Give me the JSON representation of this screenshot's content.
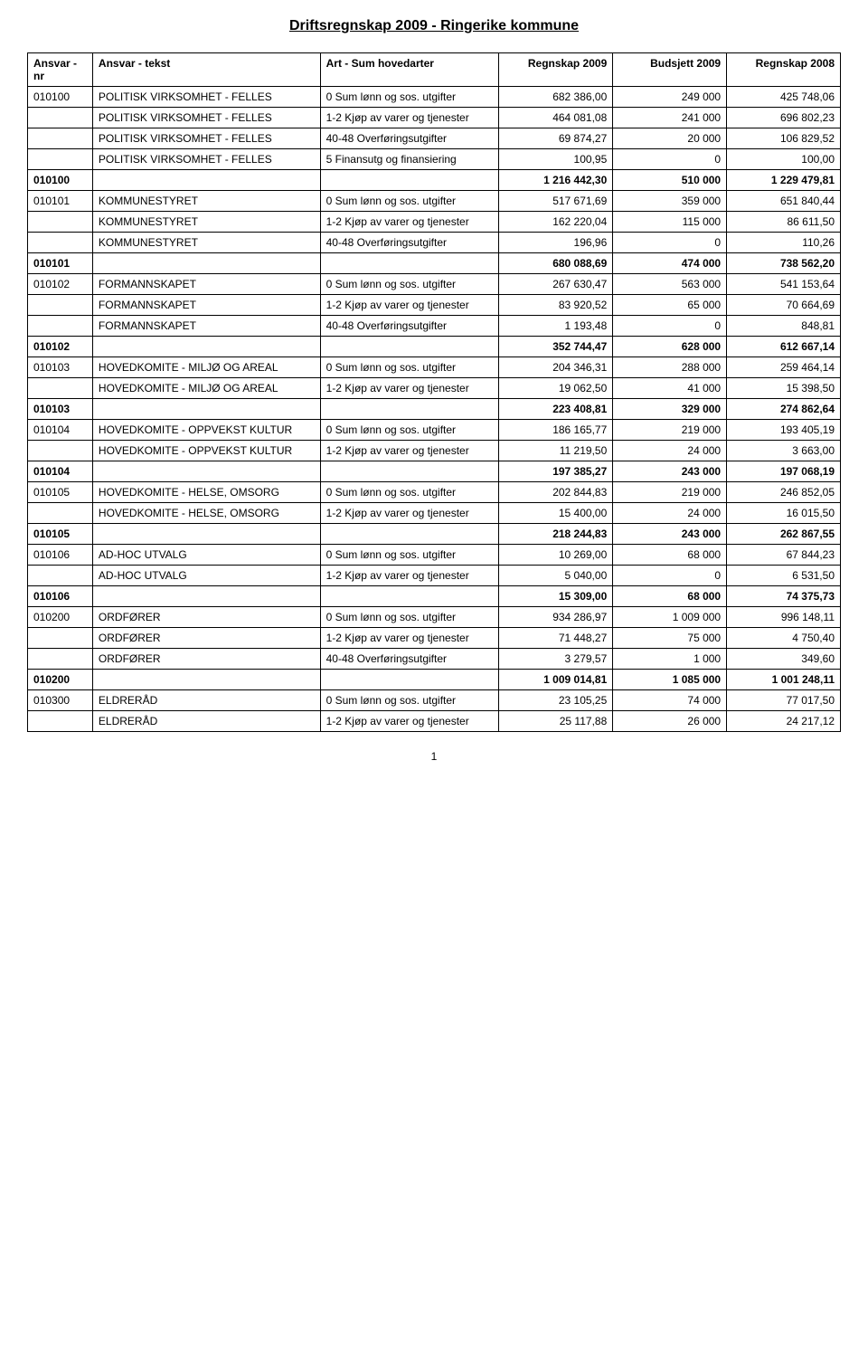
{
  "title": "Driftsregnskap 2009 - Ringerike kommune",
  "columns": {
    "c1": "Ansvar - nr",
    "c2": "Ansvar - tekst",
    "c3": "Art - Sum hovedarter",
    "c4": "Regnskap 2009",
    "c5": "Budsjett 2009",
    "c6": "Regnskap 2008"
  },
  "groups": [
    {
      "code": "010100",
      "rows": [
        {
          "ansvar": "POLITISK VIRKSOMHET - FELLES",
          "art": "0 Sum lønn og sos. utgifter",
          "r2009": "682 386,00",
          "b2009": "249 000",
          "r2008": "425 748,06"
        },
        {
          "ansvar": "POLITISK VIRKSOMHET - FELLES",
          "art": "1-2 Kjøp av varer og tjenester",
          "r2009": "464 081,08",
          "b2009": "241 000",
          "r2008": "696 802,23"
        },
        {
          "ansvar": "POLITISK VIRKSOMHET - FELLES",
          "art": "40-48 Overføringsutgifter",
          "r2009": "69 874,27",
          "b2009": "20 000",
          "r2008": "106 829,52"
        },
        {
          "ansvar": "POLITISK VIRKSOMHET - FELLES",
          "art": "5 Finansutg og finansiering",
          "r2009": "100,95",
          "b2009": "0",
          "r2008": "100,00"
        }
      ],
      "subtotal": {
        "r2009": "1 216 442,30",
        "b2009": "510 000",
        "r2008": "1 229 479,81"
      }
    },
    {
      "code": "010101",
      "rows": [
        {
          "ansvar": "KOMMUNESTYRET",
          "art": "0 Sum lønn og sos. utgifter",
          "r2009": "517 671,69",
          "b2009": "359 000",
          "r2008": "651 840,44"
        },
        {
          "ansvar": "KOMMUNESTYRET",
          "art": "1-2 Kjøp av varer og tjenester",
          "r2009": "162 220,04",
          "b2009": "115 000",
          "r2008": "86 611,50"
        },
        {
          "ansvar": "KOMMUNESTYRET",
          "art": "40-48 Overføringsutgifter",
          "r2009": "196,96",
          "b2009": "0",
          "r2008": "110,26"
        }
      ],
      "subtotal": {
        "r2009": "680 088,69",
        "b2009": "474 000",
        "r2008": "738 562,20"
      }
    },
    {
      "code": "010102",
      "rows": [
        {
          "ansvar": "FORMANNSKAPET",
          "art": "0 Sum lønn og sos. utgifter",
          "r2009": "267 630,47",
          "b2009": "563 000",
          "r2008": "541 153,64"
        },
        {
          "ansvar": "FORMANNSKAPET",
          "art": "1-2 Kjøp av varer og tjenester",
          "r2009": "83 920,52",
          "b2009": "65 000",
          "r2008": "70 664,69"
        },
        {
          "ansvar": "FORMANNSKAPET",
          "art": "40-48 Overføringsutgifter",
          "r2009": "1 193,48",
          "b2009": "0",
          "r2008": "848,81"
        }
      ],
      "subtotal": {
        "r2009": "352 744,47",
        "b2009": "628 000",
        "r2008": "612 667,14"
      }
    },
    {
      "code": "010103",
      "rows": [
        {
          "ansvar": "HOVEDKOMITE - MILJØ OG AREAL",
          "art": "0 Sum lønn og sos. utgifter",
          "r2009": "204 346,31",
          "b2009": "288 000",
          "r2008": "259 464,14"
        },
        {
          "ansvar": "HOVEDKOMITE - MILJØ OG AREAL",
          "art": "1-2 Kjøp av varer og tjenester",
          "r2009": "19 062,50",
          "b2009": "41 000",
          "r2008": "15 398,50"
        }
      ],
      "subtotal": {
        "r2009": "223 408,81",
        "b2009": "329 000",
        "r2008": "274 862,64"
      }
    },
    {
      "code": "010104",
      "rows": [
        {
          "ansvar": "HOVEDKOMITE - OPPVEKST KULTUR",
          "art": "0 Sum lønn og sos. utgifter",
          "r2009": "186 165,77",
          "b2009": "219 000",
          "r2008": "193 405,19"
        },
        {
          "ansvar": "HOVEDKOMITE - OPPVEKST KULTUR",
          "art": "1-2 Kjøp av varer og tjenester",
          "r2009": "11 219,50",
          "b2009": "24 000",
          "r2008": "3 663,00"
        }
      ],
      "subtotal": {
        "r2009": "197 385,27",
        "b2009": "243 000",
        "r2008": "197 068,19"
      }
    },
    {
      "code": "010105",
      "rows": [
        {
          "ansvar": "HOVEDKOMITE - HELSE, OMSORG",
          "art": "0 Sum lønn og sos. utgifter",
          "r2009": "202 844,83",
          "b2009": "219 000",
          "r2008": "246 852,05"
        },
        {
          "ansvar": "HOVEDKOMITE - HELSE, OMSORG",
          "art": "1-2 Kjøp av varer og tjenester",
          "r2009": "15 400,00",
          "b2009": "24 000",
          "r2008": "16 015,50"
        }
      ],
      "subtotal": {
        "r2009": "218 244,83",
        "b2009": "243 000",
        "r2008": "262 867,55"
      }
    },
    {
      "code": "010106",
      "rows": [
        {
          "ansvar": "AD-HOC UTVALG",
          "art": "0 Sum lønn og sos. utgifter",
          "r2009": "10 269,00",
          "b2009": "68 000",
          "r2008": "67 844,23"
        },
        {
          "ansvar": "AD-HOC UTVALG",
          "art": "1-2 Kjøp av varer og tjenester",
          "r2009": "5 040,00",
          "b2009": "0",
          "r2008": "6 531,50"
        }
      ],
      "subtotal": {
        "r2009": "15 309,00",
        "b2009": "68 000",
        "r2008": "74 375,73"
      }
    },
    {
      "code": "010200",
      "rows": [
        {
          "ansvar": "ORDFØRER",
          "art": "0 Sum lønn og sos. utgifter",
          "r2009": "934 286,97",
          "b2009": "1 009 000",
          "r2008": "996 148,11"
        },
        {
          "ansvar": "ORDFØRER",
          "art": "1-2 Kjøp av varer og tjenester",
          "r2009": "71 448,27",
          "b2009": "75 000",
          "r2008": "4 750,40"
        },
        {
          "ansvar": "ORDFØRER",
          "art": "40-48 Overføringsutgifter",
          "r2009": "3 279,57",
          "b2009": "1 000",
          "r2008": "349,60"
        }
      ],
      "subtotal": {
        "r2009": "1 009 014,81",
        "b2009": "1 085 000",
        "r2008": "1 001 248,11"
      }
    },
    {
      "code": "010300",
      "rows": [
        {
          "ansvar": "ELDRERÅD",
          "art": "0 Sum lønn og sos. utgifter",
          "r2009": "23 105,25",
          "b2009": "74 000",
          "r2008": "77 017,50"
        },
        {
          "ansvar": "ELDRERÅD",
          "art": "1-2 Kjøp av varer og tjenester",
          "r2009": "25 117,88",
          "b2009": "26 000",
          "r2008": "24 217,12"
        }
      ],
      "subtotal": null
    }
  ],
  "page_number": "1"
}
